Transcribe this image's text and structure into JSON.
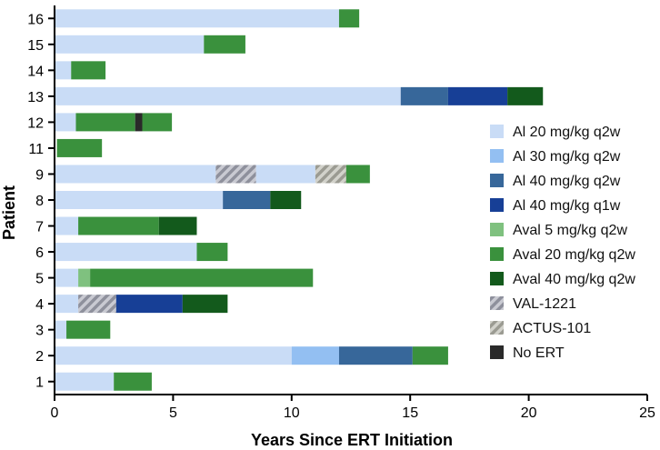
{
  "chart_data": {
    "type": "bar",
    "orientation": "horizontal-stacked-timeline",
    "title": "",
    "xlabel": "Years Since ERT Initiation",
    "ylabel": "Patient",
    "xlim": [
      0,
      25
    ],
    "xticks": [
      0,
      5,
      10,
      15,
      20,
      25
    ],
    "patients": [
      "16",
      "15",
      "14",
      "13",
      "12",
      "11",
      "9",
      "8",
      "7",
      "6",
      "5",
      "4",
      "3",
      "2",
      "1"
    ],
    "legend": [
      {
        "key": "al20",
        "label": "Al 20 mg/kg q2w",
        "color": "#c9dcf6",
        "pattern": false
      },
      {
        "key": "al30",
        "label": "Al 30 mg/kg q2w",
        "color": "#93bff2",
        "pattern": false
      },
      {
        "key": "al40",
        "label": "Al 40 mg/kg q2w",
        "color": "#37679a",
        "pattern": false
      },
      {
        "key": "al40w",
        "label": "Al 40 mg/kg q1w",
        "color": "#173f96",
        "pattern": false
      },
      {
        "key": "av5",
        "label": "Aval 5 mg/kg q2w",
        "color": "#7fc17f",
        "pattern": false
      },
      {
        "key": "av20",
        "label": "Aval 20 mg/kg q2w",
        "color": "#3a913d",
        "pattern": false
      },
      {
        "key": "av40",
        "label": "Aval 40 mg/kg q2w",
        "color": "#135a1c",
        "pattern": false
      },
      {
        "key": "val",
        "label": "VAL-1221",
        "color": "#a7a9b3",
        "pattern": true
      },
      {
        "key": "actus",
        "label": "ACTUS-101",
        "color": "#b1b1aa",
        "pattern": true
      },
      {
        "key": "noert",
        "label": "No ERT",
        "color": "#2a2a2a",
        "pattern": false
      }
    ],
    "series": [
      {
        "patient": "16",
        "segments": [
          {
            "key": "al20",
            "start": 0,
            "end": 12.0
          },
          {
            "key": "av20",
            "start": 12.0,
            "end": 12.85
          }
        ]
      },
      {
        "patient": "15",
        "segments": [
          {
            "key": "al20",
            "start": 0,
            "end": 6.3
          },
          {
            "key": "av20",
            "start": 6.3,
            "end": 8.05
          }
        ]
      },
      {
        "patient": "14",
        "segments": [
          {
            "key": "al20",
            "start": 0,
            "end": 0.7
          },
          {
            "key": "av20",
            "start": 0.7,
            "end": 2.15
          }
        ]
      },
      {
        "patient": "13",
        "segments": [
          {
            "key": "al20",
            "start": 0,
            "end": 14.6
          },
          {
            "key": "al40",
            "start": 14.6,
            "end": 16.6
          },
          {
            "key": "al40w",
            "start": 16.6,
            "end": 19.1
          },
          {
            "key": "av40",
            "start": 19.1,
            "end": 20.6
          }
        ]
      },
      {
        "patient": "12",
        "segments": [
          {
            "key": "al20",
            "start": 0,
            "end": 0.9
          },
          {
            "key": "av20",
            "start": 0.9,
            "end": 3.4
          },
          {
            "key": "noert",
            "start": 3.4,
            "end": 3.7
          },
          {
            "key": "av20",
            "start": 3.7,
            "end": 4.95
          }
        ]
      },
      {
        "patient": "11",
        "segments": [
          {
            "key": "av20",
            "start": 0.1,
            "end": 2.0
          }
        ]
      },
      {
        "patient": "9",
        "segments": [
          {
            "key": "al20",
            "start": 0,
            "end": 6.8
          },
          {
            "key": "val",
            "start": 6.8,
            "end": 8.5
          },
          {
            "key": "al20",
            "start": 8.5,
            "end": 11.0
          },
          {
            "key": "actus",
            "start": 11.0,
            "end": 12.3
          },
          {
            "key": "av20",
            "start": 12.3,
            "end": 13.3
          }
        ]
      },
      {
        "patient": "8",
        "segments": [
          {
            "key": "al20",
            "start": 0,
            "end": 7.1
          },
          {
            "key": "al40",
            "start": 7.1,
            "end": 9.1
          },
          {
            "key": "av40",
            "start": 9.1,
            "end": 10.4
          }
        ]
      },
      {
        "patient": "7",
        "segments": [
          {
            "key": "al20",
            "start": 0,
            "end": 1.0
          },
          {
            "key": "av20",
            "start": 1.0,
            "end": 4.4
          },
          {
            "key": "av40",
            "start": 4.4,
            "end": 6.0
          }
        ]
      },
      {
        "patient": "6",
        "segments": [
          {
            "key": "al20",
            "start": 0,
            "end": 6.0
          },
          {
            "key": "av20",
            "start": 6.0,
            "end": 7.3
          }
        ]
      },
      {
        "patient": "5",
        "segments": [
          {
            "key": "al20",
            "start": 0,
            "end": 1.0
          },
          {
            "key": "av5",
            "start": 1.0,
            "end": 1.5
          },
          {
            "key": "av20",
            "start": 1.5,
            "end": 10.9
          }
        ]
      },
      {
        "patient": "4",
        "segments": [
          {
            "key": "al20",
            "start": 0,
            "end": 1.0
          },
          {
            "key": "val",
            "start": 1.0,
            "end": 2.6
          },
          {
            "key": "al40w",
            "start": 2.6,
            "end": 5.4
          },
          {
            "key": "av40",
            "start": 5.4,
            "end": 7.3
          }
        ]
      },
      {
        "patient": "3",
        "segments": [
          {
            "key": "al20",
            "start": 0,
            "end": 0.5
          },
          {
            "key": "av20",
            "start": 0.5,
            "end": 2.35
          }
        ]
      },
      {
        "patient": "2",
        "segments": [
          {
            "key": "al20",
            "start": 0,
            "end": 10.0
          },
          {
            "key": "al30",
            "start": 10.0,
            "end": 12.0
          },
          {
            "key": "al40",
            "start": 12.0,
            "end": 15.1
          },
          {
            "key": "av20",
            "start": 15.1,
            "end": 16.6
          }
        ]
      },
      {
        "patient": "1",
        "segments": [
          {
            "key": "al20",
            "start": 0,
            "end": 2.5
          },
          {
            "key": "av20",
            "start": 2.5,
            "end": 4.1
          }
        ]
      }
    ]
  }
}
